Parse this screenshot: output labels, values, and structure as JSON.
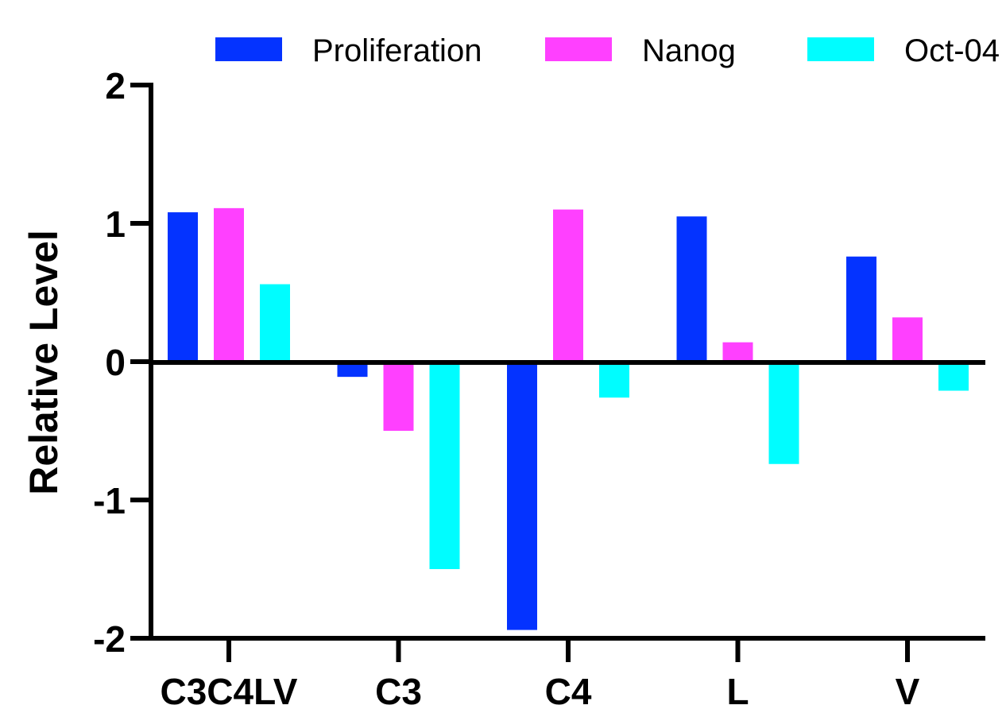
{
  "chart_data": {
    "type": "bar",
    "title": "",
    "xlabel": "",
    "ylabel": "Relative Level",
    "categories": [
      "C3C4LV",
      "C3",
      "C4",
      "L",
      "V"
    ],
    "series": [
      {
        "name": "Proliferation",
        "color": "#0433ff",
        "values": [
          1.08,
          -0.11,
          -1.94,
          1.05,
          0.76
        ]
      },
      {
        "name": "Nanog",
        "color": "#ff40ff",
        "values": [
          1.11,
          -0.5,
          1.1,
          0.14,
          0.32
        ]
      },
      {
        "name": "Oct-04",
        "color": "#00fdff",
        "values": [
          0.56,
          -1.5,
          -0.26,
          -0.74,
          -0.21
        ]
      }
    ],
    "ylim": [
      -2,
      2
    ],
    "yticks": [
      "-2",
      "-1",
      "0",
      "1",
      "2"
    ],
    "grid": false,
    "legend": "top"
  }
}
